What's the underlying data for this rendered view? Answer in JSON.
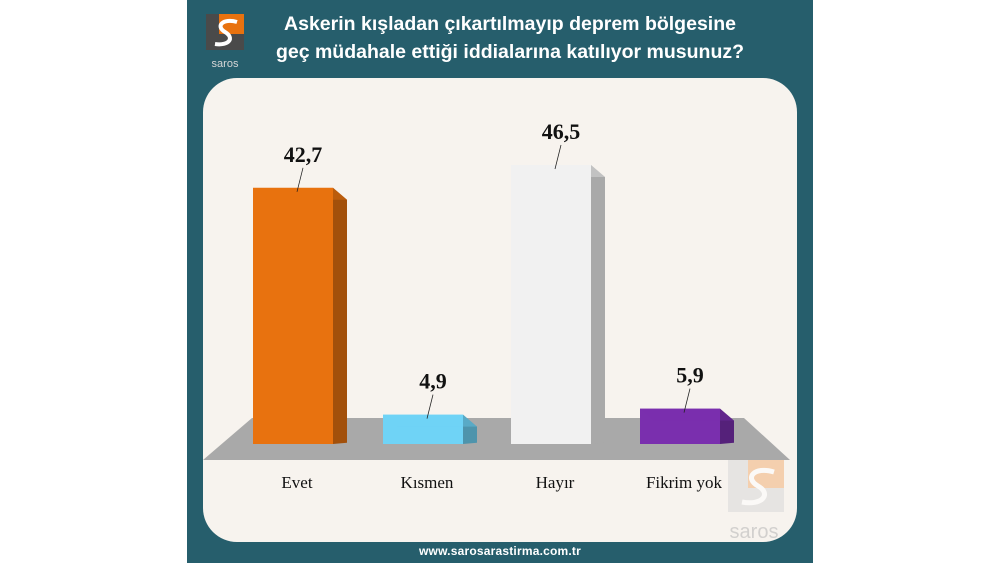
{
  "brand": {
    "logo_text": "saros",
    "watermark_text": "saros",
    "url": "www.sarosarastirma.com.tr"
  },
  "colors": {
    "panel": "#265e6c",
    "card": "#f7f3ee",
    "floor": "#a9a9a9"
  },
  "chart_data": {
    "type": "bar",
    "title_lines": [
      "Askerin kışladan çıkartılmayıp deprem bölgesine",
      "geç müdahale ettiği iddialarına katılıyor musunuz?"
    ],
    "categories": [
      "Evet",
      "Kısmen",
      "Hayır",
      "Fikrim yok"
    ],
    "values": [
      42.7,
      4.9,
      46.5,
      5.9
    ],
    "value_labels": [
      "42,7",
      "4,9",
      "46,5",
      "5,9"
    ],
    "colors": [
      "#e8720f",
      "#6fd3f6",
      "#f1f1f1",
      "#7a2fae"
    ],
    "ylim": [
      0,
      50
    ],
    "grid": false,
    "legend": "none"
  }
}
